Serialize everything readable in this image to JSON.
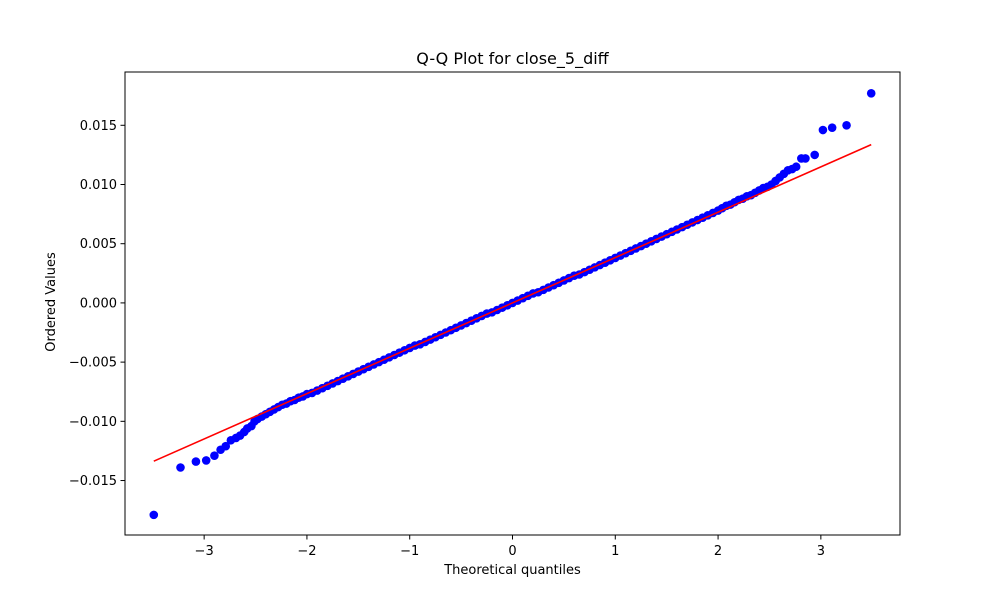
{
  "chart_data": {
    "type": "scatter",
    "title": "Q-Q Plot for close_5_diff",
    "xlabel": "Theoretical quantiles",
    "ylabel": "Ordered Values",
    "xlim": [
      -3.77,
      3.77
    ],
    "ylim": [
      -0.0196,
      0.0195
    ],
    "x_ticks": [
      -3,
      -2,
      -1,
      0,
      1,
      2,
      3
    ],
    "x_tick_labels": [
      "−3",
      "−2",
      "−1",
      "0",
      "1",
      "2",
      "3"
    ],
    "y_ticks": [
      -0.015,
      -0.01,
      -0.005,
      0.0,
      0.005,
      0.01,
      0.015
    ],
    "y_tick_labels": [
      "−0.015",
      "−0.010",
      "−0.005",
      "0.000",
      "0.005",
      "0.010",
      "0.015"
    ],
    "grid": false,
    "legend": false,
    "colors": {
      "points": "#0000ff",
      "fit_line": "#ff0000"
    },
    "fit_line": {
      "slope": 0.00383,
      "intercept": 0.0,
      "x_range": [
        -3.49,
        3.49
      ]
    },
    "points": [
      [
        -3.49,
        -0.0179
      ],
      [
        -3.23,
        -0.0139
      ],
      [
        -3.08,
        -0.0134
      ],
      [
        -2.98,
        -0.0133
      ],
      [
        -2.9,
        -0.0129
      ],
      [
        -2.84,
        -0.0124
      ],
      [
        -2.79,
        -0.0121
      ],
      [
        -2.74,
        -0.0116
      ],
      [
        -2.69,
        -0.0114
      ],
      [
        -2.65,
        -0.0112
      ],
      [
        -2.61,
        -0.0109
      ],
      [
        -2.58,
        -0.0106
      ],
      [
        -2.54,
        -0.0104
      ],
      [
        -2.51,
        -0.01
      ],
      [
        -2.48,
        -0.0098
      ],
      [
        -2.44,
        -0.0096
      ],
      [
        -2.4,
        -0.0094
      ],
      [
        -2.36,
        -0.0092
      ],
      [
        -2.32,
        -0.009
      ],
      [
        -2.28,
        -0.0088
      ],
      [
        -2.24,
        -0.0086
      ],
      [
        -2.2,
        -0.0085
      ],
      [
        -2.16,
        -0.0083
      ],
      [
        -2.12,
        -0.0082
      ],
      [
        -2.08,
        -0.008
      ],
      [
        -2.04,
        -0.0079
      ],
      [
        -2.0,
        -0.0077
      ],
      [
        -1.95,
        -0.0076
      ],
      [
        -1.9,
        -0.0074
      ],
      [
        -1.85,
        -0.0072
      ],
      [
        -1.8,
        -0.007
      ],
      [
        -1.75,
        -0.0068
      ],
      [
        -1.7,
        -0.0066
      ],
      [
        -1.65,
        -0.0064
      ],
      [
        -1.6,
        -0.0062
      ],
      [
        -1.55,
        -0.006
      ],
      [
        -1.5,
        -0.0058
      ],
      [
        -1.45,
        -0.0056
      ],
      [
        -1.4,
        -0.0054
      ],
      [
        -1.35,
        -0.0052
      ],
      [
        -1.3,
        -0.005
      ],
      [
        -1.25,
        -0.0048
      ],
      [
        -1.2,
        -0.0046
      ],
      [
        -1.15,
        -0.0044
      ],
      [
        -1.1,
        -0.0042
      ],
      [
        -1.05,
        -0.004
      ],
      [
        -1.0,
        -0.0038
      ],
      [
        -0.95,
        -0.0036
      ],
      [
        -0.9,
        -0.0035
      ],
      [
        -0.85,
        -0.0033
      ],
      [
        -0.8,
        -0.0031
      ],
      [
        -0.75,
        -0.0029
      ],
      [
        -0.7,
        -0.0027
      ],
      [
        -0.65,
        -0.0025
      ],
      [
        -0.6,
        -0.0023
      ],
      [
        -0.55,
        -0.0021
      ],
      [
        -0.5,
        -0.0019
      ],
      [
        -0.45,
        -0.0017
      ],
      [
        -0.4,
        -0.0015
      ],
      [
        -0.35,
        -0.0013
      ],
      [
        -0.3,
        -0.0011
      ],
      [
        -0.25,
        -0.0009
      ],
      [
        -0.2,
        -0.0008
      ],
      [
        -0.15,
        -0.0006
      ],
      [
        -0.1,
        -0.0004
      ],
      [
        -0.05,
        -0.0002
      ],
      [
        0.0,
        0.0
      ],
      [
        0.05,
        0.0002
      ],
      [
        0.1,
        0.0004
      ],
      [
        0.15,
        0.0006
      ],
      [
        0.2,
        0.0008
      ],
      [
        0.25,
        0.0009
      ],
      [
        0.3,
        0.0011
      ],
      [
        0.35,
        0.0013
      ],
      [
        0.4,
        0.0015
      ],
      [
        0.45,
        0.0017
      ],
      [
        0.5,
        0.0019
      ],
      [
        0.55,
        0.0021
      ],
      [
        0.6,
        0.0023
      ],
      [
        0.65,
        0.0024
      ],
      [
        0.7,
        0.0026
      ],
      [
        0.75,
        0.0028
      ],
      [
        0.8,
        0.003
      ],
      [
        0.85,
        0.0032
      ],
      [
        0.9,
        0.0034
      ],
      [
        0.95,
        0.0036
      ],
      [
        1.0,
        0.0038
      ],
      [
        1.05,
        0.004
      ],
      [
        1.1,
        0.0042
      ],
      [
        1.15,
        0.0044
      ],
      [
        1.2,
        0.0046
      ],
      [
        1.25,
        0.0048
      ],
      [
        1.3,
        0.005
      ],
      [
        1.35,
        0.0052
      ],
      [
        1.4,
        0.0054
      ],
      [
        1.45,
        0.0056
      ],
      [
        1.5,
        0.0058
      ],
      [
        1.55,
        0.006
      ],
      [
        1.6,
        0.0062
      ],
      [
        1.65,
        0.0064
      ],
      [
        1.7,
        0.0066
      ],
      [
        1.75,
        0.0068
      ],
      [
        1.8,
        0.007
      ],
      [
        1.85,
        0.0072
      ],
      [
        1.9,
        0.0074
      ],
      [
        1.95,
        0.0076
      ],
      [
        2.0,
        0.0078
      ],
      [
        2.04,
        0.008
      ],
      [
        2.08,
        0.0082
      ],
      [
        2.12,
        0.0083
      ],
      [
        2.16,
        0.0085
      ],
      [
        2.2,
        0.0087
      ],
      [
        2.24,
        0.0088
      ],
      [
        2.28,
        0.009
      ],
      [
        2.32,
        0.0091
      ],
      [
        2.36,
        0.0093
      ],
      [
        2.4,
        0.0095
      ],
      [
        2.44,
        0.0097
      ],
      [
        2.48,
        0.0098
      ],
      [
        2.52,
        0.01
      ],
      [
        2.56,
        0.0103
      ],
      [
        2.6,
        0.0106
      ],
      [
        2.64,
        0.0109
      ],
      [
        2.68,
        0.0112
      ],
      [
        2.72,
        0.0113
      ],
      [
        2.76,
        0.0115
      ],
      [
        2.81,
        0.0122
      ],
      [
        2.85,
        0.0122
      ],
      [
        2.94,
        0.0125
      ],
      [
        3.02,
        0.0146
      ],
      [
        3.11,
        0.0148
      ],
      [
        3.25,
        0.015
      ],
      [
        3.49,
        0.0177
      ]
    ]
  }
}
